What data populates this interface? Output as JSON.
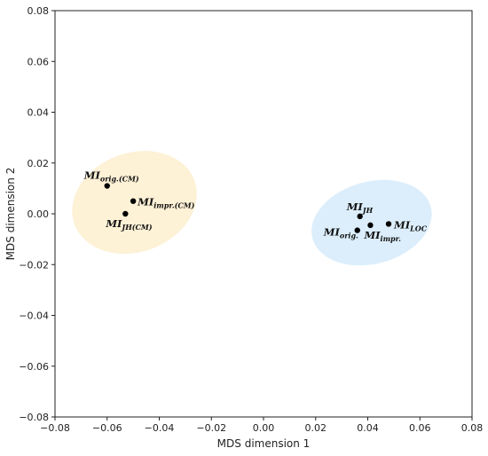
{
  "chart_data": {
    "type": "scatter",
    "title": "",
    "xlabel": "MDS dimension 1",
    "ylabel": "MDS dimension 2",
    "xlim": [
      -0.08,
      0.08
    ],
    "ylim": [
      -0.08,
      0.08
    ],
    "x_ticks": [
      "−0.08",
      "−0.06",
      "−0.04",
      "−0.02",
      "0.00",
      "0.02",
      "0.04",
      "0.06",
      "0.08"
    ],
    "y_ticks": [
      "−0.08",
      "−0.06",
      "−0.04",
      "−0.02",
      "0.00",
      "0.02",
      "0.04",
      "0.06",
      "0.08"
    ],
    "grid": false,
    "clusters": [
      {
        "color": "#fdf1d6",
        "cx": -0.0495,
        "cy": 0.0045,
        "rx": 0.0245,
        "ry": 0.0195,
        "rotation_deg": -20
      },
      {
        "color": "#dceefb",
        "cx": 0.0415,
        "cy": -0.0035,
        "rx": 0.0235,
        "ry": 0.0162,
        "rotation_deg": -15
      }
    ],
    "points": [
      {
        "x": -0.06,
        "y": 0.011,
        "base": "MI",
        "sub": "orig.(CM)"
      },
      {
        "x": -0.05,
        "y": 0.005,
        "base": "MI",
        "sub": "impr.(CM)"
      },
      {
        "x": -0.053,
        "y": 0.0,
        "base": "MI",
        "sub": "JH(CM)"
      },
      {
        "x": 0.037,
        "y": -0.001,
        "base": "MI",
        "sub": "JH"
      },
      {
        "x": 0.041,
        "y": -0.0045,
        "base": "MI",
        "sub": "impr."
      },
      {
        "x": 0.036,
        "y": -0.0065,
        "base": "MI",
        "sub": "orig."
      },
      {
        "x": 0.048,
        "y": -0.004,
        "base": "MI",
        "sub": "LOC"
      }
    ]
  }
}
